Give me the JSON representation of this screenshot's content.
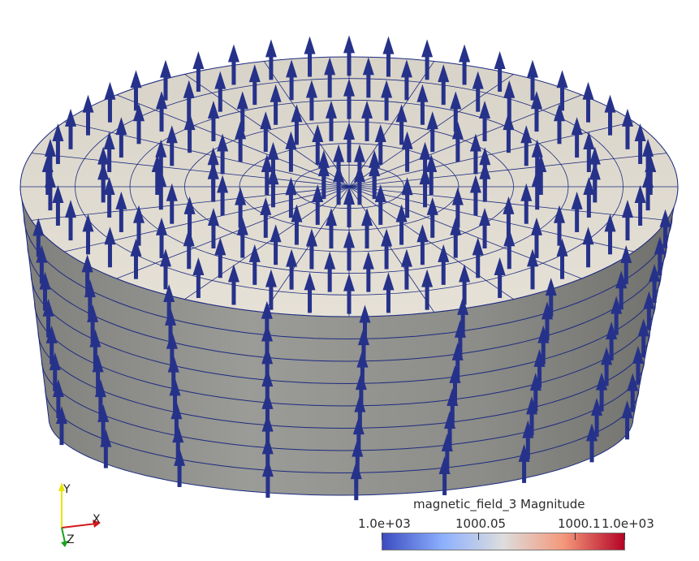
{
  "scene": {
    "object": "cylinder-mesh-with-glyph-arrows",
    "colors": {
      "top_face": "#dcd7cc",
      "side_face": "#8a8a86",
      "mesh_lines": "#1c2a80",
      "arrows": "#26328a",
      "background": "#ffffff"
    }
  },
  "axes": {
    "y_label": "Y",
    "x_label": "X",
    "z_label": "Z",
    "colors": {
      "y": "#e6e600",
      "x": "#d11a1a",
      "z": "#1aa11a"
    }
  },
  "legend": {
    "title": "magnetic_field_3 Magnitude",
    "labels": {
      "min": "1.0e+03",
      "mid1": "1000.05",
      "mid2": "1000.1",
      "max": "1.0e+03"
    },
    "colormap": [
      "#3b4cc0",
      "#8db0fe",
      "#dddddd",
      "#f4987a",
      "#b40426"
    ]
  }
}
